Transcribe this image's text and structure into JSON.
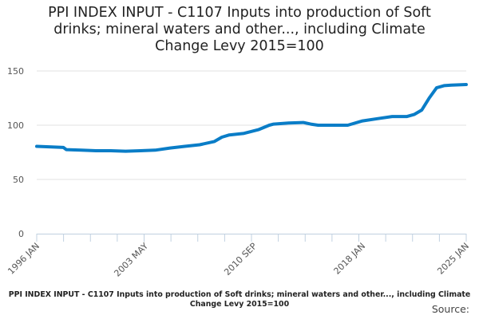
{
  "chart_data": {
    "type": "line",
    "title": "PPI INDEX INPUT - C1107 Inputs into production of Soft drinks; mineral waters and other..., including Climate Change Levy 2015=100",
    "xlabel": "",
    "ylabel": "",
    "xlim": [
      1996,
      2025
    ],
    "ylim": [
      0,
      150
    ],
    "yticks": [
      "0",
      "50",
      "100",
      "150"
    ],
    "xticks": [
      {
        "label": "1996 JAN",
        "x": 1996.0
      },
      {
        "label": "2003 MAY",
        "x": 2003.33
      },
      {
        "label": "2010 SEP",
        "x": 2010.67
      },
      {
        "label": "2018 JAN",
        "x": 2018.0
      },
      {
        "label": "2025 JAN",
        "x": 2025.0
      }
    ],
    "grid": true,
    "color": "#0a7dc7",
    "series": [
      {
        "name": "PPI INDEX INPUT - C1107",
        "x": [
          1996,
          1997,
          1997.8,
          1998,
          1999,
          2000,
          2001,
          2002,
          2003,
          2004,
          2005,
          2006,
          2007,
          2008,
          2008.5,
          2009,
          2010,
          2011,
          2011.7,
          2012,
          2013,
          2014,
          2014.5,
          2015,
          2016,
          2017,
          2018,
          2019,
          2020,
          2021,
          2021.5,
          2022,
          2022.5,
          2023,
          2023.5,
          2024,
          2025
        ],
        "y": [
          80.5,
          80,
          79.5,
          77.5,
          77,
          76.5,
          76.5,
          76,
          76.5,
          77,
          79,
          80.5,
          82,
          85,
          89,
          91,
          92.5,
          96,
          100,
          101,
          102,
          102.5,
          101,
          100,
          100,
          100,
          104,
          106,
          108,
          108,
          110,
          114,
          125,
          134.5,
          136.5,
          137,
          137.5
        ]
      }
    ]
  },
  "footer": {
    "title": "PPI INDEX INPUT - C1107 Inputs into production of Soft drinks; mineral waters and other..., including Climate Change Levy 2015=100",
    "source": "Source:"
  }
}
